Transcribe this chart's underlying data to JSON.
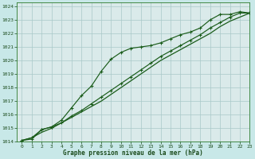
{
  "title": "Graphe pression niveau de la mer (hPa)",
  "bg_color": "#c8e8e8",
  "plot_bg_color": "#daeaea",
  "grid_color": "#a8c8c8",
  "line_color": "#1a5c1a",
  "xlim": [
    -0.5,
    23
  ],
  "ylim": [
    1014,
    1024.3
  ],
  "xticks": [
    0,
    1,
    2,
    3,
    4,
    5,
    6,
    7,
    8,
    9,
    10,
    11,
    12,
    13,
    14,
    15,
    16,
    17,
    18,
    19,
    20,
    21,
    22,
    23
  ],
  "yticks": [
    1014,
    1015,
    1016,
    1017,
    1018,
    1019,
    1020,
    1021,
    1022,
    1023,
    1024
  ],
  "line_straight_x": [
    0,
    1,
    2,
    3,
    4,
    5,
    6,
    7,
    8,
    9,
    10,
    11,
    12,
    13,
    14,
    15,
    16,
    17,
    18,
    19,
    20,
    21,
    22,
    23
  ],
  "line_straight_y": [
    1014.1,
    1014.3,
    1014.7,
    1015.0,
    1015.4,
    1015.8,
    1016.2,
    1016.6,
    1017.0,
    1017.5,
    1018.0,
    1018.5,
    1019.0,
    1019.5,
    1020.0,
    1020.4,
    1020.8,
    1021.2,
    1021.6,
    1022.0,
    1022.5,
    1022.9,
    1023.2,
    1023.5
  ],
  "line_upper_x": [
    0,
    1,
    2,
    3,
    4,
    5,
    6,
    7,
    8,
    9,
    10,
    11,
    12,
    13,
    14,
    15,
    16,
    17,
    18,
    19,
    20,
    21,
    22,
    23
  ],
  "line_upper_y": [
    1014.1,
    1014.3,
    1014.9,
    1015.1,
    1015.6,
    1016.5,
    1017.4,
    1018.1,
    1019.2,
    1020.1,
    1020.6,
    1020.9,
    1021.0,
    1021.1,
    1021.3,
    1021.6,
    1021.9,
    1022.1,
    1022.4,
    1023.0,
    1023.4,
    1023.4,
    1023.6,
    1023.5
  ],
  "line_lower_x": [
    0,
    1,
    2,
    3,
    4,
    5,
    6,
    7,
    8,
    9,
    10,
    11,
    12,
    13,
    14,
    15,
    16,
    17,
    18,
    19,
    20,
    21,
    22,
    23
  ],
  "line_lower_y": [
    1014.1,
    1014.2,
    1014.9,
    1015.1,
    1015.4,
    1015.9,
    1016.3,
    1016.8,
    1017.3,
    1017.8,
    1018.3,
    1018.8,
    1019.3,
    1019.8,
    1020.3,
    1020.7,
    1021.1,
    1021.5,
    1021.9,
    1022.4,
    1022.8,
    1023.2,
    1023.5,
    1023.5
  ]
}
